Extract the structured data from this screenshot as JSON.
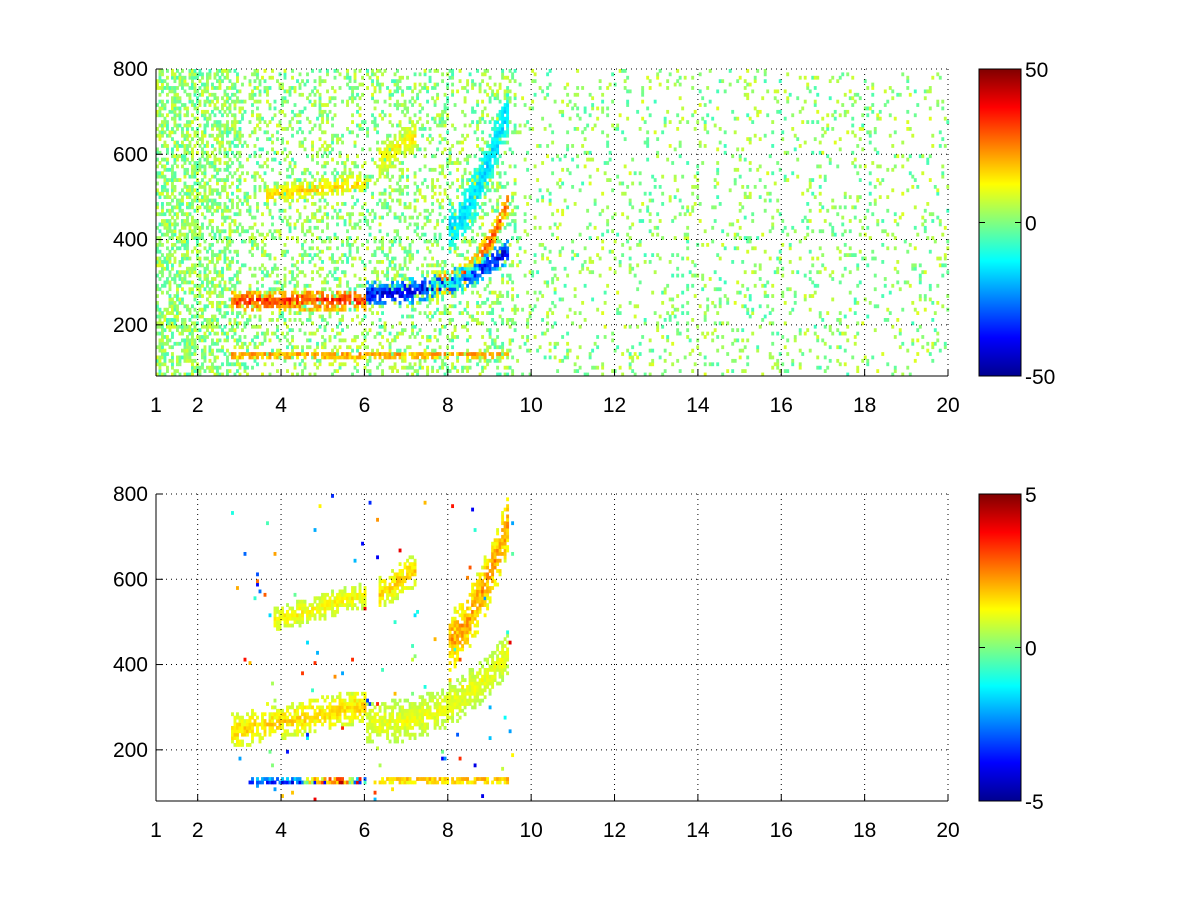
{
  "colormap": "jet",
  "chart_data": [
    {
      "type": "heatmap",
      "title": "",
      "xlabel": "",
      "ylabel": "",
      "xlim": [
        1,
        20
      ],
      "ylim": [
        80,
        800
      ],
      "x_ticks": [
        1,
        2,
        4,
        6,
        8,
        10,
        12,
        14,
        16,
        18,
        20
      ],
      "y_ticks": [
        200,
        400,
        600,
        800
      ],
      "grid": true,
      "colorbar": {
        "min": -50,
        "max": 50,
        "ticks": [
          -50,
          0,
          50
        ]
      },
      "features": [
        {
          "x": [
            2.8,
            6.0
          ],
          "y_start": 250,
          "y_end": 255,
          "curve": 0.3,
          "value": 30,
          "width": 25
        },
        {
          "x": [
            6.0,
            9.4
          ],
          "y_start": 270,
          "y_end": 370,
          "curve": 2.5,
          "value": -35,
          "width": 30
        },
        {
          "x": [
            7.5,
            9.4
          ],
          "y_start": 290,
          "y_end": 480,
          "curve": 2.5,
          "value": 25,
          "width": 30
        },
        {
          "x": [
            2.8,
            9.4
          ],
          "y_start": 125,
          "y_end": 125,
          "curve": 1,
          "value": 22,
          "width": 10
        },
        {
          "x": [
            3.6,
            6.0
          ],
          "y_start": 500,
          "y_end": 530,
          "curve": 1,
          "value": 15,
          "width": 22
        },
        {
          "x": [
            6.3,
            7.2
          ],
          "y_start": 580,
          "y_end": 640,
          "curve": 1,
          "value": 12,
          "width": 40
        },
        {
          "x": [
            8.0,
            9.4
          ],
          "y_start": 420,
          "y_end": 700,
          "curve": 1.5,
          "value": -15,
          "width": 60
        }
      ],
      "noise": {
        "x_min": 1,
        "x_max": 20,
        "amplitude": 8
      }
    },
    {
      "type": "heatmap",
      "title": "",
      "xlabel": "",
      "ylabel": "",
      "xlim": [
        1,
        20
      ],
      "ylim": [
        80,
        800
      ],
      "x_ticks": [
        1,
        2,
        4,
        6,
        8,
        10,
        12,
        14,
        16,
        18,
        20
      ],
      "y_ticks": [
        200,
        400,
        600,
        800
      ],
      "grid": true,
      "colorbar": {
        "min": -5,
        "max": 5,
        "ticks": [
          -5,
          0,
          5
        ]
      },
      "features": [
        {
          "x": [
            2.8,
            6.0
          ],
          "y_start": 240,
          "y_end": 300,
          "curve": 1,
          "value": 1.5,
          "width": 40
        },
        {
          "x": [
            6.0,
            9.4
          ],
          "y_start": 260,
          "y_end": 420,
          "curve": 2.5,
          "value": 1.0,
          "width": 50
        },
        {
          "x": [
            3.2,
            6.0
          ],
          "y_start": 122,
          "y_end": 122,
          "curve": 1,
          "value": -3.5,
          "width": 8
        },
        {
          "x": [
            4.5,
            6.0
          ],
          "y_start": 122,
          "y_end": 122,
          "curve": 1,
          "value": 4.5,
          "width": 8
        },
        {
          "x": [
            6.2,
            9.4
          ],
          "y_start": 125,
          "y_end": 125,
          "curve": 1,
          "value": 2.0,
          "width": 8
        },
        {
          "x": [
            3.8,
            6.0
          ],
          "y_start": 500,
          "y_end": 560,
          "curve": 1,
          "value": 1.2,
          "width": 30
        },
        {
          "x": [
            6.3,
            7.2
          ],
          "y_start": 560,
          "y_end": 620,
          "curve": 1,
          "value": 1.5,
          "width": 40
        },
        {
          "x": [
            8.0,
            9.4
          ],
          "y_start": 450,
          "y_end": 720,
          "curve": 1.5,
          "value": 2.0,
          "width": 70
        }
      ],
      "noise": {
        "x_min": 2.8,
        "x_max": 9.6,
        "amplitude": 0
      }
    }
  ]
}
